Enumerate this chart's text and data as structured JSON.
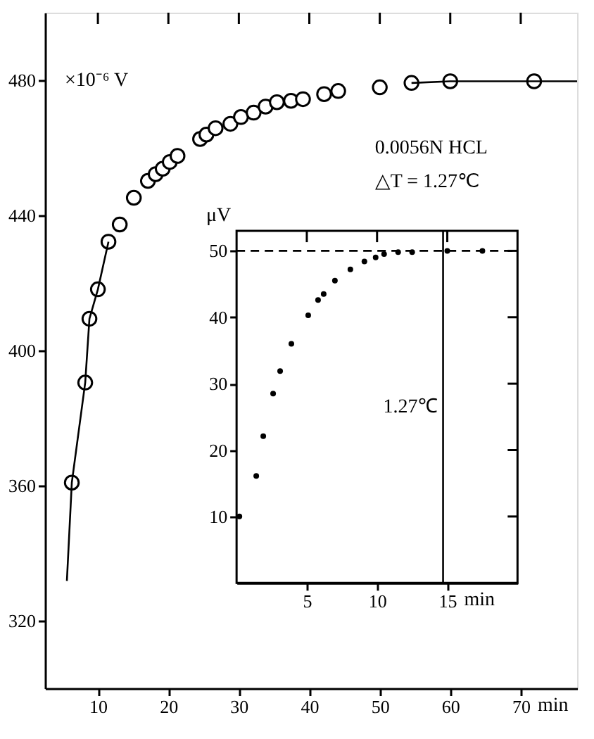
{
  "chart_data": [
    {
      "type": "scatter",
      "xlabel": "min",
      "ylabel": "×10⁻⁶ V",
      "xlim": [
        2.5,
        78
      ],
      "ylim": [
        300,
        500
      ],
      "xticks": [
        10,
        20,
        30,
        40,
        50,
        60,
        70
      ],
      "yticks": [
        320,
        360,
        400,
        440,
        480
      ],
      "marker": "circle",
      "annotations": [
        "0.0056N HCL",
        "△T = 1.27℃"
      ],
      "series": [
        {
          "color": "#000000",
          "x": [
            6.3,
            8.2,
            8.8,
            10.0,
            11.5,
            13.1,
            15.1,
            17.1,
            18.2,
            19.2,
            20.2,
            21.3,
            24.5,
            25.4,
            26.7,
            28.8,
            30.3,
            32.1,
            33.8,
            35.4,
            37.4,
            39.1,
            42.1,
            44.1,
            50.0,
            54.5,
            60.0,
            71.9
          ],
          "values": [
            360.9,
            390.5,
            409.4,
            418.1,
            432.2,
            437.3,
            445.2,
            450.2,
            452.2,
            453.8,
            455.8,
            457.6,
            462.6,
            463.9,
            465.8,
            467.1,
            469.1,
            470.4,
            472.2,
            473.5,
            473.9,
            474.4,
            475.9,
            476.8,
            477.9,
            479.2,
            479.7,
            479.7
          ]
        },
        {
          "type": "line",
          "color": "#000000",
          "marker": "none",
          "line_style": "solid",
          "x": [
            5.6,
            6.3,
            8.2,
            8.8,
            10.0,
            11.5
          ],
          "values": [
            331.8,
            360.9,
            390.5,
            409.4,
            418.1,
            432.2
          ]
        },
        {
          "type": "line",
          "color": "#000000",
          "marker": "none",
          "line_style": "solid",
          "x": [
            54.5,
            60.0,
            71.9,
            78.0
          ],
          "values": [
            479.2,
            479.7,
            479.7,
            479.7
          ]
        }
      ]
    },
    {
      "type": "scatter",
      "xlabel": "min",
      "ylabel": "μV",
      "xlim": [
        0,
        20
      ],
      "ylim": [
        0,
        53
      ],
      "xticks": [
        5,
        10,
        15
      ],
      "yticks": [
        10,
        20,
        30,
        40,
        50
      ],
      "marker": "circle",
      "ref_lines": [
        {
          "axis": "y",
          "value": 50,
          "line_style": "dashed",
          "color": "#000000"
        },
        {
          "axis": "x",
          "value": 14.7,
          "label": "1.27℃",
          "color": "#000000"
        }
      ],
      "series": [
        {
          "color": "#000000",
          "x": [
            0.2,
            1.4,
            1.9,
            2.6,
            3.1,
            3.9,
            5.1,
            5.8,
            6.2,
            7.0,
            8.1,
            9.1,
            9.9,
            10.5,
            11.5,
            12.5,
            15.0,
            17.5
          ],
          "values": [
            10,
            16.1,
            22.1,
            28.5,
            31.9,
            36.0,
            40.3,
            42.6,
            43.5,
            45.5,
            47.2,
            48.4,
            49.0,
            49.5,
            49.8,
            49.8,
            50,
            50
          ]
        }
      ]
    }
  ]
}
